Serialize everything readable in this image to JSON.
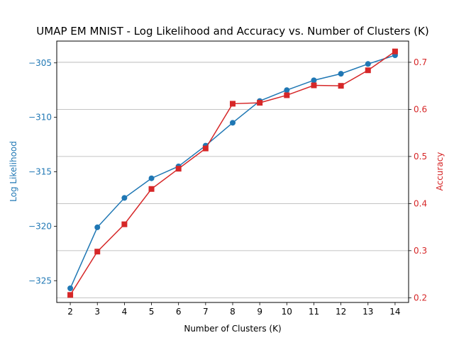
{
  "chart_data": {
    "type": "line",
    "title": "UMAP EM MNIST - Log Likelihood and Accuracy vs. Number of Clusters (K)",
    "xlabel": "Number of Clusters (K)",
    "x": [
      2,
      3,
      4,
      5,
      6,
      7,
      8,
      9,
      10,
      11,
      12,
      13,
      14
    ],
    "xlim": [
      1.5,
      14.5
    ],
    "grid": "horizontal lines at right-axis ticks",
    "left_axis": {
      "label": "Log Likelihood",
      "color": "#1f77b4",
      "ylim": [
        -327.0,
        -303.0
      ],
      "ticks": [
        -325,
        -320,
        -315,
        -310,
        -305
      ],
      "tick_labels": [
        "−325",
        "−320",
        "−315",
        "−310",
        "−305"
      ]
    },
    "right_axis": {
      "label": "Accuracy",
      "color": "#d62728",
      "ylim": [
        0.19,
        0.745
      ],
      "ticks": [
        0.2,
        0.3,
        0.4,
        0.5,
        0.6,
        0.7
      ],
      "tick_labels": [
        "0.2",
        "0.3",
        "0.4",
        "0.5",
        "0.6",
        "0.7"
      ]
    },
    "series": [
      {
        "axis": "left",
        "color": "#1f77b4",
        "marker": "circle",
        "values": [
          -325.7,
          -320.1,
          -317.4,
          -315.6,
          -314.5,
          -312.6,
          -310.5,
          -308.5,
          -307.5,
          -306.6,
          -306.0,
          -305.1,
          -304.3
        ]
      },
      {
        "axis": "right",
        "color": "#d62728",
        "marker": "square",
        "values": [
          0.206,
          0.298,
          0.356,
          0.431,
          0.474,
          0.517,
          0.612,
          0.614,
          0.63,
          0.651,
          0.65,
          0.683,
          0.723
        ]
      }
    ]
  }
}
